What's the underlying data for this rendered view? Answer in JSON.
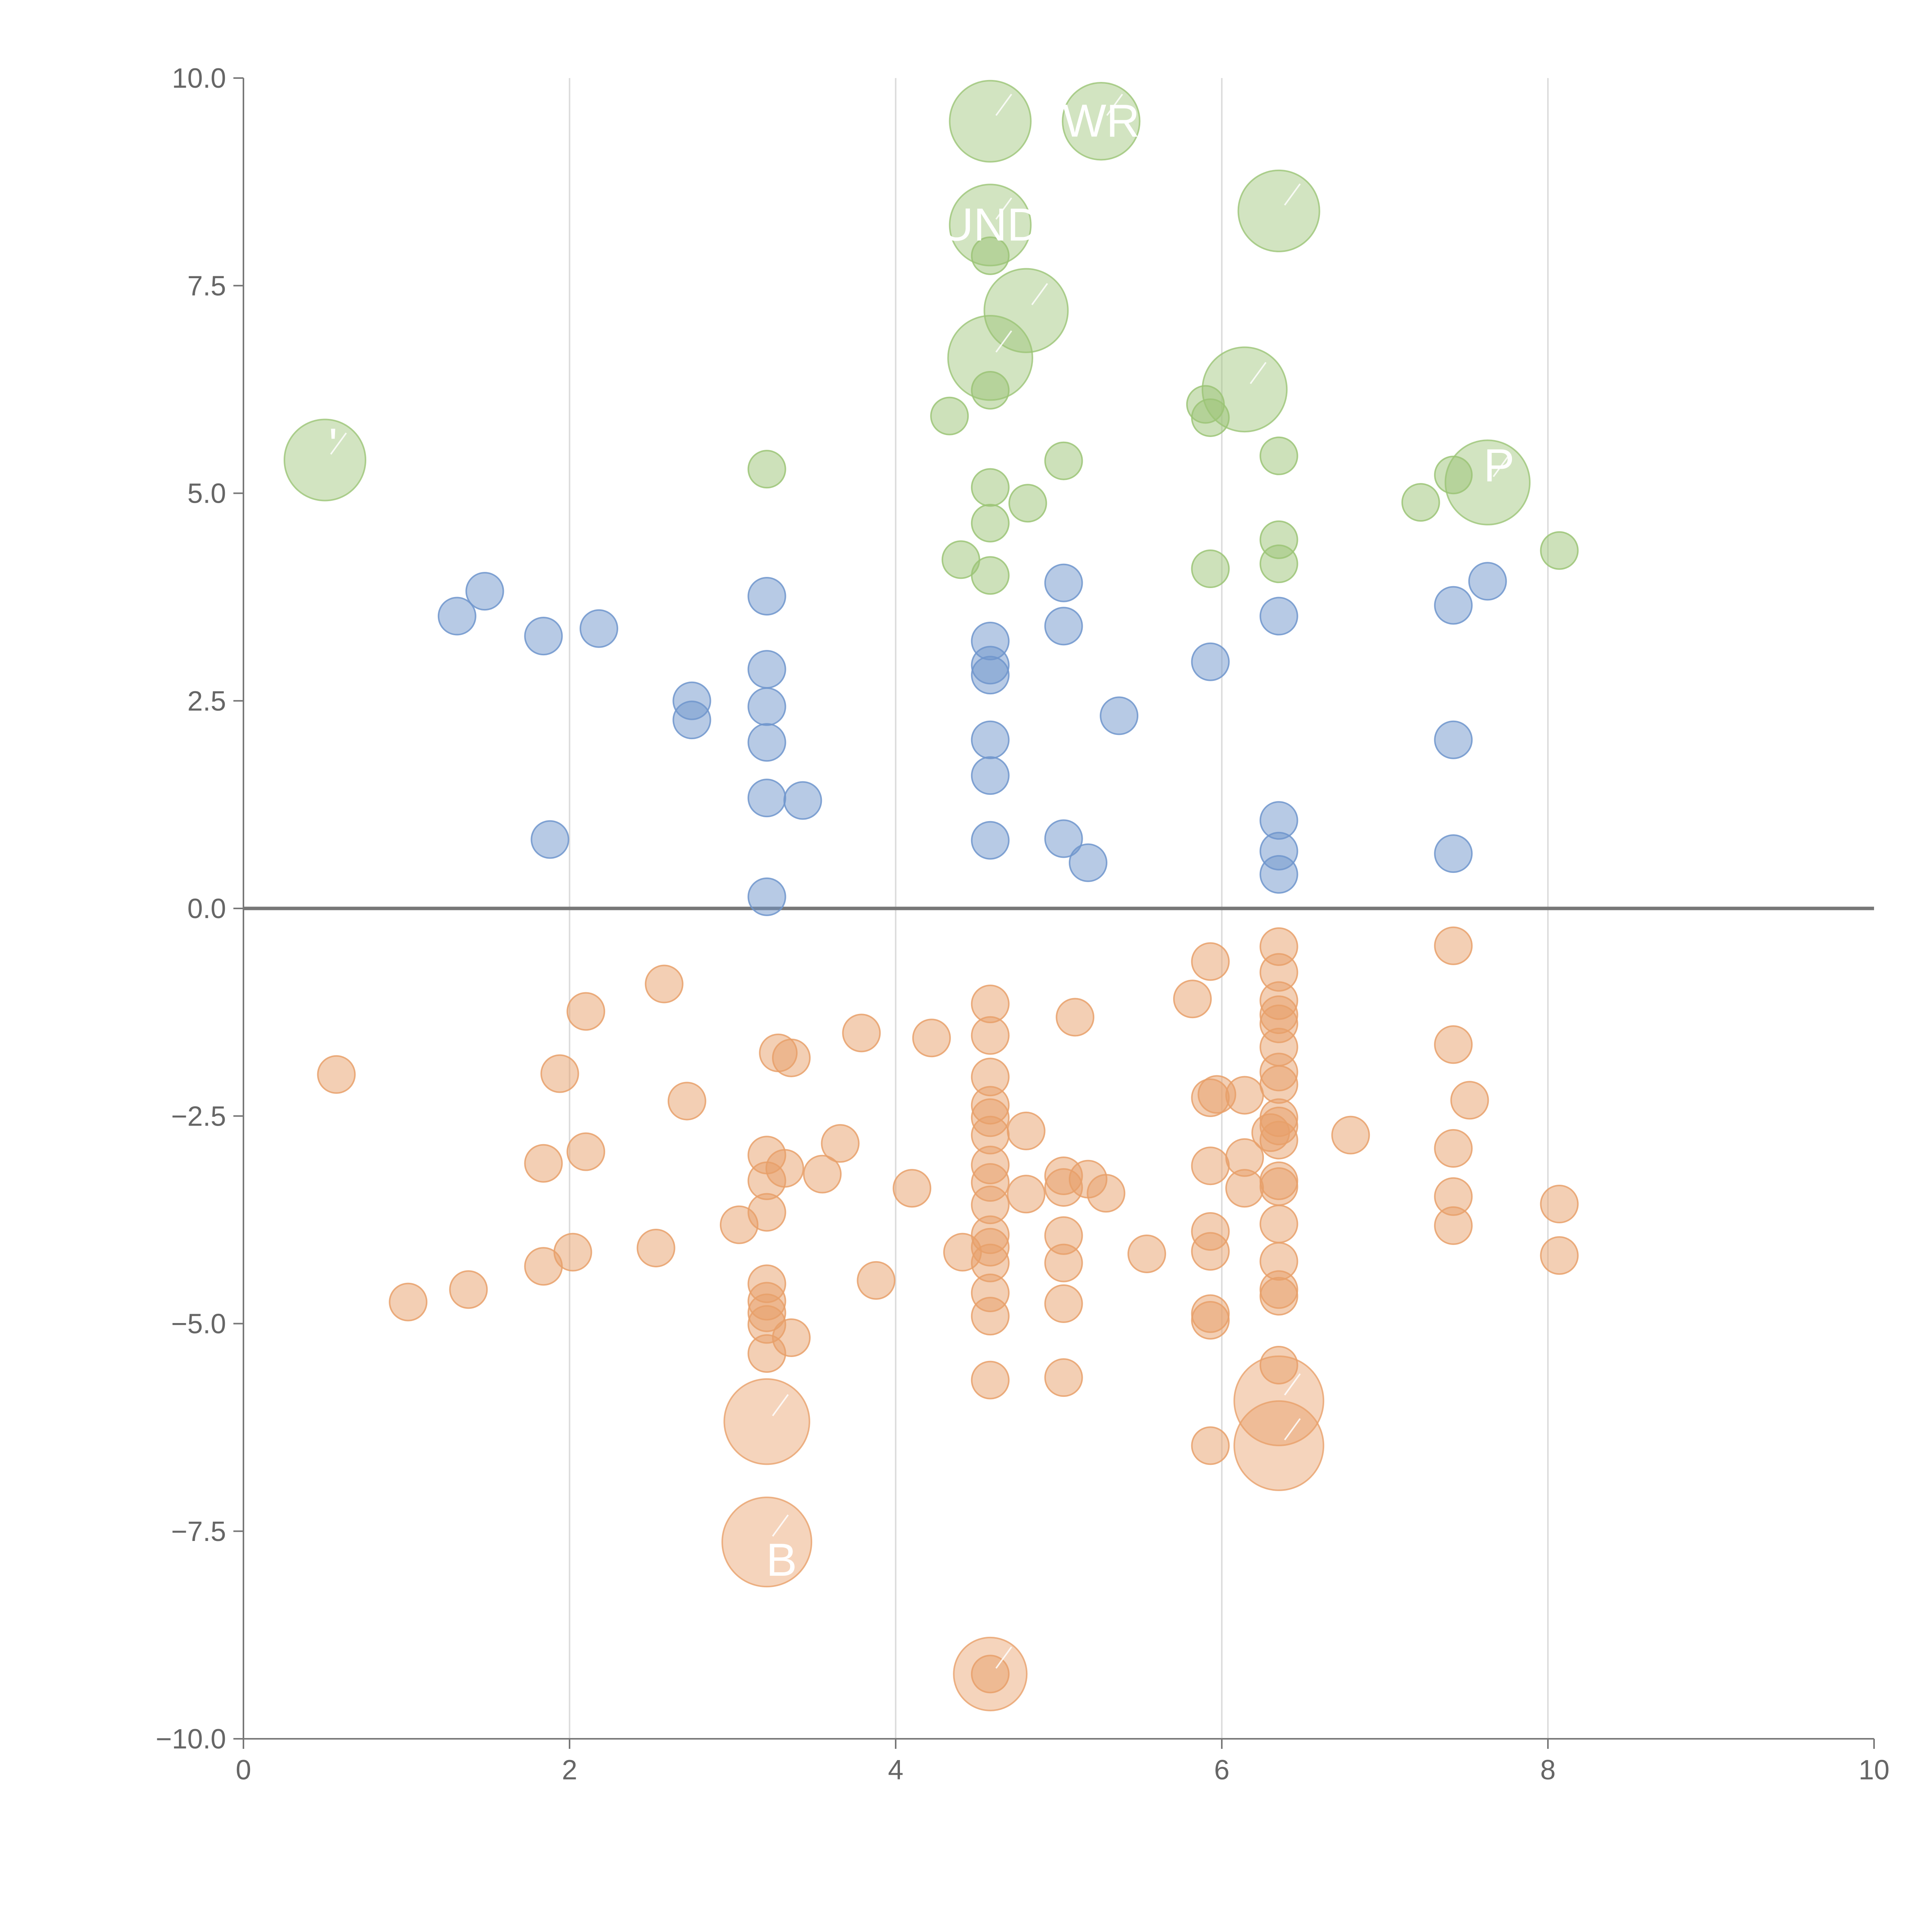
{
  "chart_data": {
    "type": "scatter",
    "title": "",
    "xlabel": "",
    "ylabel": "",
    "xlim": [
      0,
      10
    ],
    "ylim": [
      -10,
      10
    ],
    "x_ticks": [
      "0",
      "2",
      "4",
      "6",
      "8",
      "10"
    ],
    "y_ticks": [
      "10.0",
      "7.5",
      "5.0",
      "2.5",
      "0.0",
      "−2.5",
      "−5.0",
      "−7.5",
      "−10.0"
    ],
    "x_tick_values": [
      0,
      2,
      4,
      6,
      8,
      10
    ],
    "y_tick_values": [
      10,
      7.5,
      5,
      2.5,
      0,
      -2.5,
      -5,
      -7.5,
      -10
    ],
    "grid": {
      "vertical": true,
      "horizontal": false
    },
    "zero_line": true,
    "colors": {
      "positive_small": "#6f95cc",
      "positive_large": "#9bc476",
      "negative": "#e8a06a"
    },
    "series": [
      {
        "color": "#6f95cc",
        "points": [
          [
            1.31,
            3.52
          ],
          [
            1.48,
            3.82
          ],
          [
            1.84,
            3.28
          ],
          [
            2.18,
            3.37
          ],
          [
            1.88,
            0.83
          ],
          [
            2.75,
            2.5
          ],
          [
            2.75,
            2.27
          ],
          [
            3.21,
            3.76
          ],
          [
            3.21,
            2.88
          ],
          [
            3.21,
            2.43
          ],
          [
            3.21,
            2.0
          ],
          [
            3.21,
            1.33
          ],
          [
            3.43,
            1.3
          ],
          [
            3.21,
            0.14
          ],
          [
            4.58,
            3.22
          ],
          [
            4.58,
            2.93
          ],
          [
            4.58,
            2.81
          ],
          [
            4.58,
            2.03
          ],
          [
            4.58,
            1.6
          ],
          [
            4.58,
            0.82
          ],
          [
            5.03,
            3.92
          ],
          [
            5.03,
            3.4
          ],
          [
            5.37,
            2.32
          ],
          [
            5.03,
            0.84
          ],
          [
            5.18,
            0.55
          ],
          [
            5.93,
            2.97
          ],
          [
            6.35,
            3.52
          ],
          [
            6.35,
            1.06
          ],
          [
            6.35,
            0.69
          ],
          [
            6.35,
            0.41
          ],
          [
            7.42,
            3.65
          ],
          [
            7.63,
            3.94
          ],
          [
            7.42,
            2.03
          ],
          [
            7.42,
            0.66
          ]
        ]
      },
      {
        "color": "#9bc476",
        "points": [
          [
            3.21,
            5.29
          ],
          [
            4.33,
            5.93
          ],
          [
            4.58,
            7.86
          ],
          [
            4.58,
            6.24
          ],
          [
            4.58,
            5.07
          ],
          [
            4.58,
            4.64
          ],
          [
            4.81,
            4.88
          ],
          [
            4.4,
            4.2
          ],
          [
            4.58,
            4.01
          ],
          [
            5.03,
            5.39
          ],
          [
            5.9,
            6.07
          ],
          [
            5.93,
            5.91
          ],
          [
            6.35,
            5.45
          ],
          [
            5.93,
            4.09
          ],
          [
            6.35,
            4.44
          ],
          [
            6.35,
            4.15
          ],
          [
            7.22,
            4.89
          ],
          [
            7.42,
            5.22
          ],
          [
            8.07,
            4.31
          ]
        ]
      },
      {
        "color": "#e8a06a",
        "points": [
          [
            0.57,
            -2.0
          ],
          [
            1.01,
            -4.74
          ],
          [
            1.38,
            -4.59
          ],
          [
            1.84,
            -3.07
          ],
          [
            1.84,
            -4.31
          ],
          [
            1.94,
            -1.99
          ],
          [
            2.02,
            -4.14
          ],
          [
            2.1,
            -1.24
          ],
          [
            2.1,
            -2.93
          ],
          [
            2.53,
            -4.09
          ],
          [
            2.58,
            -0.91
          ],
          [
            2.72,
            -2.32
          ],
          [
            3.04,
            -3.81
          ],
          [
            3.21,
            -2.97
          ],
          [
            3.21,
            -3.28
          ],
          [
            3.21,
            -3.66
          ],
          [
            3.28,
            -1.74
          ],
          [
            3.36,
            -1.8
          ],
          [
            3.32,
            -3.13
          ],
          [
            3.55,
            -3.2
          ],
          [
            3.66,
            -2.83
          ],
          [
            3.79,
            -1.5
          ],
          [
            3.21,
            -4.52
          ],
          [
            3.21,
            -4.73
          ],
          [
            3.21,
            -4.87
          ],
          [
            3.21,
            -5.01
          ],
          [
            3.36,
            -5.17
          ],
          [
            3.21,
            -5.36
          ],
          [
            3.88,
            -4.48
          ],
          [
            4.1,
            -3.37
          ],
          [
            4.22,
            -1.56
          ],
          [
            4.41,
            -4.14
          ],
          [
            4.58,
            -1.15
          ],
          [
            4.58,
            -1.53
          ],
          [
            4.58,
            -2.03
          ],
          [
            4.58,
            -2.37
          ],
          [
            4.58,
            -2.52
          ],
          [
            4.58,
            -2.73
          ],
          [
            4.58,
            -3.09
          ],
          [
            4.58,
            -3.3
          ],
          [
            4.58,
            -3.57
          ],
          [
            4.58,
            -3.93
          ],
          [
            4.58,
            -4.08
          ],
          [
            4.58,
            -4.27
          ],
          [
            4.58,
            -4.63
          ],
          [
            4.58,
            -4.91
          ],
          [
            4.58,
            -5.68
          ],
          [
            4.8,
            -2.68
          ],
          [
            4.8,
            -3.44
          ],
          [
            5.03,
            -3.22
          ],
          [
            5.03,
            -3.36
          ],
          [
            5.03,
            -3.94
          ],
          [
            5.03,
            -4.27
          ],
          [
            5.03,
            -4.76
          ],
          [
            5.03,
            -5.65
          ],
          [
            5.1,
            -1.31
          ],
          [
            5.18,
            -3.26
          ],
          [
            5.29,
            -3.43
          ],
          [
            5.54,
            -4.16
          ],
          [
            5.82,
            -1.09
          ],
          [
            5.93,
            -0.64
          ],
          [
            5.93,
            -2.28
          ],
          [
            5.93,
            -3.1
          ],
          [
            5.93,
            -3.89
          ],
          [
            5.93,
            -4.13
          ],
          [
            5.93,
            -4.88
          ],
          [
            5.93,
            -4.96
          ],
          [
            5.93,
            -6.47
          ],
          [
            5.97,
            -2.24
          ],
          [
            6.14,
            -2.25
          ],
          [
            6.14,
            -3.0
          ],
          [
            6.14,
            -3.37
          ],
          [
            6.3,
            -2.7
          ],
          [
            6.35,
            -0.46
          ],
          [
            6.35,
            -0.77
          ],
          [
            6.35,
            -1.11
          ],
          [
            6.35,
            -1.28
          ],
          [
            6.35,
            -1.39
          ],
          [
            6.35,
            -1.67
          ],
          [
            6.35,
            -1.97
          ],
          [
            6.35,
            -2.12
          ],
          [
            6.35,
            -2.52
          ],
          [
            6.35,
            -2.62
          ],
          [
            6.35,
            -2.79
          ],
          [
            6.35,
            -3.28
          ],
          [
            6.35,
            -3.35
          ],
          [
            6.35,
            -3.8
          ],
          [
            6.35,
            -4.25
          ],
          [
            6.35,
            -4.59
          ],
          [
            6.35,
            -4.67
          ],
          [
            6.35,
            -5.5
          ],
          [
            6.79,
            -2.73
          ],
          [
            7.42,
            -0.45
          ],
          [
            7.42,
            -1.64
          ],
          [
            7.52,
            -2.31
          ],
          [
            7.42,
            -2.89
          ],
          [
            7.42,
            -3.47
          ],
          [
            7.42,
            -3.82
          ],
          [
            8.07,
            -3.56
          ],
          [
            8.07,
            -4.18
          ],
          [
            4.58,
            -9.22
          ]
        ]
      }
    ],
    "highlighted": [
      {
        "color": "#9bc476",
        "x": 0.5,
        "y": 5.4,
        "r": 1
      },
      {
        "color": "#9bc476",
        "x": 4.58,
        "y": 9.48,
        "r": 1
      },
      {
        "color": "#9bc476",
        "x": 5.26,
        "y": 9.48,
        "r": 0.95
      },
      {
        "color": "#9bc476",
        "x": 6.35,
        "y": 8.4,
        "r": 1
      },
      {
        "color": "#9bc476",
        "x": 4.58,
        "y": 8.23,
        "r": 1
      },
      {
        "color": "#9bc476",
        "x": 4.8,
        "y": 7.2,
        "r": 1.03
      },
      {
        "color": "#9bc476",
        "x": 4.58,
        "y": 6.63,
        "r": 1.04
      },
      {
        "color": "#9bc476",
        "x": 6.14,
        "y": 6.25,
        "r": 1.04
      },
      {
        "color": "#9bc476",
        "x": 7.63,
        "y": 5.13,
        "r": 1.04
      },
      {
        "color": "#e8a06a",
        "x": 3.21,
        "y": -6.18,
        "r": 1.05
      },
      {
        "color": "#e8a06a",
        "x": 6.35,
        "y": -5.93,
        "r": 1.1
      },
      {
        "color": "#e8a06a",
        "x": 6.35,
        "y": -6.47,
        "r": 1.1
      },
      {
        "color": "#e8a06a",
        "x": 3.21,
        "y": -7.63,
        "r": 1.1
      },
      {
        "color": "#e8a06a",
        "x": 4.58,
        "y": -9.22,
        "r": 0.9
      }
    ],
    "annotations": [
      {
        "text": "'",
        "x": 0.55,
        "y": 5.58
      },
      {
        "text": "WR",
        "x": 5.26,
        "y": 9.48
      },
      {
        "text": "UND",
        "x": 4.58,
        "y": 8.23
      },
      {
        "text": "P",
        "x": 7.7,
        "y": 5.33
      },
      {
        "text": "B",
        "x": 3.3,
        "y": -7.85
      }
    ]
  }
}
